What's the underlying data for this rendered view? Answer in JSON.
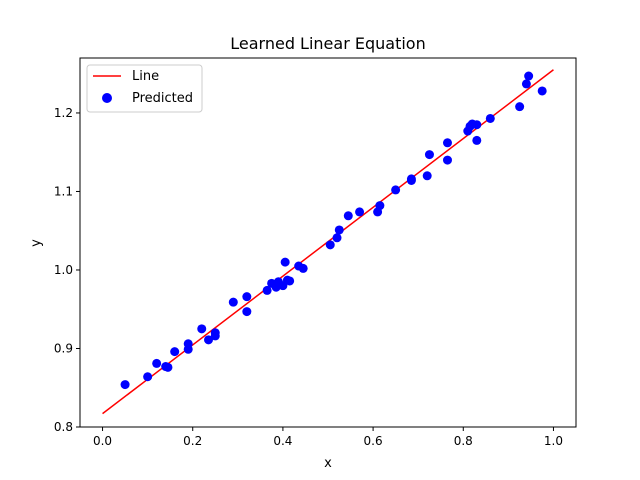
{
  "chart_data": {
    "type": "scatter",
    "title": "Learned Linear Equation",
    "xlabel": "x",
    "ylabel": "y",
    "xlim": [
      -0.05,
      1.05
    ],
    "ylim": [
      0.8,
      1.27
    ],
    "xticks": [
      "0.0",
      "0.2",
      "0.4",
      "0.6",
      "0.8",
      "1.0"
    ],
    "yticks": [
      "0.8",
      "0.9",
      "1.0",
      "1.1",
      "1.2"
    ],
    "grid": false,
    "legend_position": "top-left",
    "line": {
      "name": "Line",
      "color": "#ff0000",
      "x": [
        0.0,
        1.0
      ],
      "y": [
        0.817,
        1.255
      ]
    },
    "series": [
      {
        "name": "Predicted",
        "color": "#0000ff",
        "points": [
          [
            0.05,
            0.854
          ],
          [
            0.1,
            0.864
          ],
          [
            0.12,
            0.881
          ],
          [
            0.14,
            0.877
          ],
          [
            0.145,
            0.876
          ],
          [
            0.16,
            0.896
          ],
          [
            0.19,
            0.899
          ],
          [
            0.19,
            0.906
          ],
          [
            0.22,
            0.925
          ],
          [
            0.235,
            0.911
          ],
          [
            0.25,
            0.916
          ],
          [
            0.25,
            0.92
          ],
          [
            0.29,
            0.959
          ],
          [
            0.32,
            0.966
          ],
          [
            0.32,
            0.947
          ],
          [
            0.365,
            0.974
          ],
          [
            0.375,
            0.983
          ],
          [
            0.385,
            0.978
          ],
          [
            0.39,
            0.985
          ],
          [
            0.4,
            0.98
          ],
          [
            0.405,
            1.01
          ],
          [
            0.41,
            0.987
          ],
          [
            0.415,
            0.986
          ],
          [
            0.435,
            1.005
          ],
          [
            0.445,
            1.002
          ],
          [
            0.505,
            1.032
          ],
          [
            0.52,
            1.041
          ],
          [
            0.525,
            1.051
          ],
          [
            0.545,
            1.069
          ],
          [
            0.57,
            1.074
          ],
          [
            0.61,
            1.074
          ],
          [
            0.615,
            1.082
          ],
          [
            0.65,
            1.102
          ],
          [
            0.685,
            1.114
          ],
          [
            0.685,
            1.116
          ],
          [
            0.72,
            1.12
          ],
          [
            0.725,
            1.147
          ],
          [
            0.765,
            1.14
          ],
          [
            0.765,
            1.162
          ],
          [
            0.81,
            1.177
          ],
          [
            0.815,
            1.183
          ],
          [
            0.82,
            1.186
          ],
          [
            0.83,
            1.165
          ],
          [
            0.83,
            1.185
          ],
          [
            0.86,
            1.193
          ],
          [
            0.925,
            1.208
          ],
          [
            0.94,
            1.237
          ],
          [
            0.945,
            1.247
          ],
          [
            0.975,
            1.228
          ]
        ]
      }
    ]
  }
}
